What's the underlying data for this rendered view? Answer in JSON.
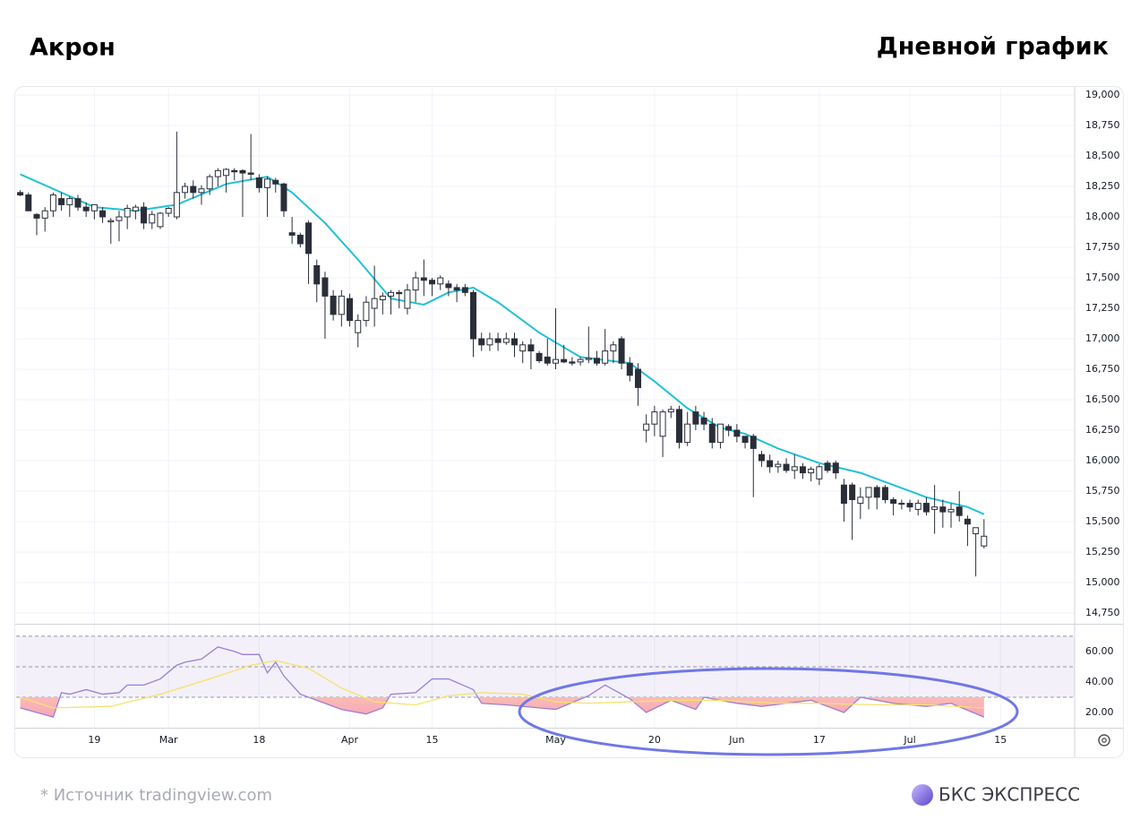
{
  "chart_data": {
    "type": "candlestick",
    "title": "Акрон",
    "subtitle": "Дневной график",
    "source": "*  Источник tradingview.com",
    "brand": "БКС ЭКСПРЕСС",
    "up_color": "#ffffff",
    "down_color": "#2a2e39",
    "wick_color": "#2a2e39",
    "grid": true,
    "open": [
      18200,
      18180,
      18020,
      17990,
      18050,
      18150,
      18100,
      18150,
      18080,
      18050,
      18050,
      17960,
      17970,
      18000,
      18050,
      18080,
      17950,
      17920,
      18030,
      18000,
      18200,
      18250,
      18200,
      18230,
      18330,
      18340,
      18380,
      18380,
      18360,
      18320,
      18240,
      18300,
      18270,
      17870,
      17850,
      17950,
      17600,
      17500,
      17350,
      17200,
      17330,
      17050,
      17150,
      17250,
      17320,
      17350,
      17380,
      17250,
      17400,
      17500,
      17480,
      17450,
      17450,
      17420,
      17420,
      17380,
      17000,
      16950,
      17000,
      16970,
      17000,
      16900,
      16950,
      16880,
      16850,
      16800,
      16830,
      16810,
      16810,
      16830,
      16840,
      16800,
      16900,
      17000,
      16800,
      16750,
      16250,
      16300,
      16200,
      16400,
      16420,
      16150,
      16400,
      16350,
      16300,
      16150,
      16280,
      16250,
      16200,
      16200,
      16050,
      16000,
      15950,
      15970,
      15920,
      15950,
      15900,
      15850,
      15980,
      15980,
      15800,
      15800,
      15650,
      15700,
      15780,
      15780,
      15680,
      15650,
      15650,
      15600,
      15650,
      15600,
      15620,
      15580,
      15620,
      15520,
      15400,
      15300
    ],
    "high": [
      18220,
      18200,
      18030,
      18080,
      18200,
      18200,
      18170,
      18180,
      18120,
      18100,
      18080,
      17990,
      18050,
      18100,
      18100,
      18120,
      18050,
      18040,
      18080,
      18700,
      18280,
      18300,
      18260,
      18350,
      18400,
      18400,
      18400,
      18390,
      18680,
      18350,
      18330,
      18320,
      18280,
      18000,
      17870,
      17970,
      17650,
      17550,
      17400,
      17400,
      17370,
      17200,
      17350,
      17600,
      17380,
      17400,
      17400,
      17450,
      17550,
      17650,
      17500,
      17520,
      17480,
      17450,
      17450,
      17400,
      17050,
      17050,
      17050,
      17050,
      17050,
      16980,
      17000,
      16900,
      17000,
      17250,
      16950,
      16850,
      16850,
      17100,
      16900,
      17080,
      16980,
      17020,
      16850,
      16800,
      16380,
      16450,
      16420,
      16450,
      16450,
      16400,
      16450,
      16400,
      16350,
      16300,
      16300,
      16300,
      16200,
      16220,
      16080,
      16050,
      16000,
      16020,
      16050,
      15980,
      15950,
      15970,
      16000,
      16000,
      15850,
      15820,
      15780,
      15780,
      15800,
      15800,
      15700,
      15680,
      15680,
      15680,
      15700,
      15800,
      15680,
      15650,
      15750,
      15550,
      15450,
      15520
    ],
    "low": [
      18170,
      18050,
      17850,
      17880,
      18000,
      18050,
      18000,
      18050,
      18000,
      17980,
      17950,
      17780,
      17800,
      17900,
      17980,
      17900,
      17900,
      17900,
      18000,
      17980,
      18150,
      18150,
      18100,
      18180,
      18250,
      18200,
      18300,
      18000,
      18300,
      18200,
      18000,
      18200,
      18000,
      17780,
      17750,
      17450,
      17300,
      17000,
      17150,
      17100,
      17100,
      16930,
      17100,
      17100,
      17200,
      17200,
      17250,
      17200,
      17300,
      17350,
      17350,
      17400,
      17350,
      17300,
      17350,
      16850,
      16900,
      16900,
      16900,
      16950,
      16850,
      16800,
      16750,
      16800,
      16780,
      16750,
      16800,
      16780,
      16780,
      16800,
      16780,
      16780,
      16800,
      16750,
      16650,
      16450,
      16150,
      16200,
      16030,
      16350,
      16100,
      16120,
      16250,
      16250,
      16100,
      16100,
      16200,
      16150,
      16100,
      15700,
      15950,
      15900,
      15900,
      15900,
      15850,
      15850,
      15830,
      15800,
      15900,
      15850,
      15500,
      15350,
      15520,
      15600,
      15600,
      15650,
      15550,
      15600,
      15580,
      15550,
      15550,
      15400,
      15450,
      15450,
      15500,
      15300,
      15050,
      15280
    ],
    "close": [
      18180,
      18050,
      17990,
      18050,
      18180,
      18100,
      18150,
      18080,
      18050,
      18100,
      18000,
      17970,
      18000,
      18070,
      18080,
      17950,
      18020,
      18030,
      18070,
      18200,
      18250,
      18200,
      18230,
      18330,
      18380,
      18390,
      18370,
      18360,
      18350,
      18240,
      18310,
      18270,
      18050,
      17850,
      17780,
      17700,
      17450,
      17350,
      17200,
      17350,
      17150,
      17150,
      17300,
      17330,
      17350,
      17380,
      17370,
      17400,
      17500,
      17480,
      17450,
      17500,
      17420,
      17400,
      17380,
      17000,
      16950,
      17000,
      16970,
      17000,
      16950,
      16950,
      16900,
      16820,
      16800,
      16830,
      16810,
      16800,
      16830,
      16840,
      16800,
      16900,
      16950,
      16800,
      16700,
      16600,
      16300,
      16400,
      16400,
      16420,
      16150,
      16300,
      16300,
      16300,
      16150,
      16300,
      16250,
      16200,
      16150,
      16100,
      16000,
      15950,
      15970,
      15920,
      15950,
      15900,
      15930,
      15950,
      15920,
      15900,
      15650,
      15680,
      15700,
      15780,
      15700,
      15680,
      15650,
      15650,
      15620,
      15650,
      15580,
      15620,
      15580,
      15600,
      15550,
      15480,
      15450,
      15380
    ],
    "ma": {
      "color": "#22c1d6",
      "x": [
        0,
        9,
        14,
        19,
        25,
        30,
        33,
        37,
        41,
        45,
        49,
        52,
        55,
        58,
        63,
        68,
        74,
        77,
        81,
        85,
        88,
        92,
        97,
        102,
        106,
        110,
        115,
        117
      ],
      "values": [
        18350,
        18080,
        18050,
        18100,
        18270,
        18330,
        18200,
        17950,
        17650,
        17330,
        17280,
        17380,
        17420,
        17300,
        17050,
        16850,
        16800,
        16650,
        16430,
        16270,
        16220,
        16100,
        15980,
        15900,
        15800,
        15700,
        15620,
        15560
      ]
    },
    "xlim": [
      -0.5,
      128
    ],
    "xticks": [
      {
        "value": 9,
        "label": "19"
      },
      {
        "value": 18,
        "label": "Mar"
      },
      {
        "value": 29,
        "label": "18"
      },
      {
        "value": 40,
        "label": "Apr"
      },
      {
        "value": 50,
        "label": "15"
      },
      {
        "value": 65,
        "label": "May"
      },
      {
        "value": 77,
        "label": "20"
      },
      {
        "value": 87,
        "label": "Jun"
      },
      {
        "value": 97,
        "label": "17"
      },
      {
        "value": 108,
        "label": "Jul"
      },
      {
        "value": 119,
        "label": "15"
      }
    ],
    "ylim": [
      14669,
      19059
    ],
    "yticks": [
      {
        "value": 14750,
        "label": "14,750"
      },
      {
        "value": 15000,
        "label": "15,000"
      },
      {
        "value": 15250,
        "label": "15,250"
      },
      {
        "value": 15500,
        "label": "15,500"
      },
      {
        "value": 15750,
        "label": "15,750"
      },
      {
        "value": 16000,
        "label": "16,000"
      },
      {
        "value": 16250,
        "label": "16,250"
      },
      {
        "value": 16500,
        "label": "16,500"
      },
      {
        "value": 16750,
        "label": "16,750"
      },
      {
        "value": 17000,
        "label": "17,000"
      },
      {
        "value": 17250,
        "label": "17,250"
      },
      {
        "value": 17500,
        "label": "17,500"
      },
      {
        "value": 17750,
        "label": "17,750"
      },
      {
        "value": 18000,
        "label": "18,000"
      },
      {
        "value": 18250,
        "label": "18,250"
      },
      {
        "value": 18500,
        "label": "18,500"
      },
      {
        "value": 18750,
        "label": "18,750"
      },
      {
        "value": 19000,
        "label": "19,000"
      }
    ],
    "rsi": {
      "ylim": [
        10,
        77
      ],
      "yticks": [
        {
          "value": 20,
          "label": "20.00"
        },
        {
          "value": 40,
          "label": "40.00"
        },
        {
          "value": 60,
          "label": "60.00"
        }
      ],
      "levels": [
        30,
        50,
        70
      ],
      "band_color": "#7e57c2",
      "series": [
        {
          "color": "#9b7fd4",
          "x": [
            0,
            2,
            4,
            5,
            6,
            8,
            10,
            12,
            13,
            15,
            17,
            19,
            20,
            22,
            24,
            26,
            27,
            29,
            30,
            31,
            32,
            34,
            37,
            39,
            42,
            44,
            45,
            48,
            50,
            52,
            55,
            56,
            59,
            63,
            65,
            69,
            71,
            74,
            76,
            79,
            82,
            83,
            87,
            90,
            93,
            96,
            100,
            102,
            106,
            110,
            113,
            117
          ],
          "values": [
            23,
            20,
            17,
            33,
            32,
            35,
            32,
            33,
            38,
            38,
            42,
            51,
            53,
            55,
            63,
            60,
            58,
            58,
            46,
            53,
            44,
            32,
            26,
            22,
            19,
            23,
            32,
            33,
            42,
            42,
            35,
            26,
            25,
            23,
            22,
            31,
            38,
            29,
            20,
            28,
            22,
            30,
            26,
            24,
            26,
            28,
            20,
            30,
            26,
            24,
            26,
            17
          ]
        },
        {
          "color": "#f5e26b",
          "x": [
            0,
            4,
            11,
            17,
            23,
            28,
            31,
            35,
            39,
            43,
            48,
            52,
            56,
            61,
            65,
            69,
            74,
            80,
            85,
            92,
            97,
            104,
            110,
            117
          ],
          "values": [
            30,
            23,
            24,
            32,
            42,
            51,
            54,
            49,
            36,
            27,
            25,
            31,
            33,
            32,
            27,
            26,
            27,
            28,
            28,
            26,
            26,
            25,
            25,
            23
          ]
        }
      ]
    }
  }
}
